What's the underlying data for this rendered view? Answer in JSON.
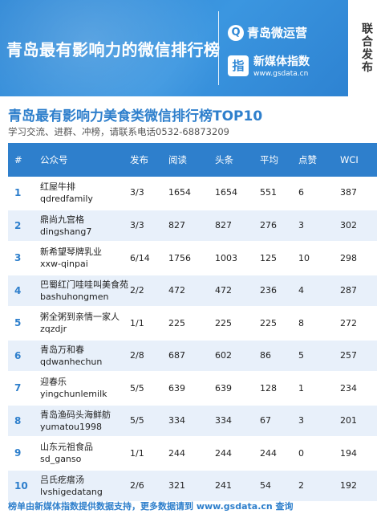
{
  "banner": {
    "title": "青岛最有影响力的微信排行榜",
    "brand1_logo": "Q",
    "brand1": "青岛微运营",
    "brand2_logo": "指",
    "brand2": "新媒体指数",
    "brand2_url": "www.gsdata.cn",
    "joint_release": "联合发布"
  },
  "main": {
    "title": "青岛最有影响力美食类微信排行榜TOP10",
    "subtitle": "学习交流、进群、冲榜，请联系电话0532-68873209"
  },
  "table": {
    "headers": [
      "#",
      "公众号",
      "发布",
      "阅读",
      "头条",
      "平均",
      "点赞",
      "WCI"
    ],
    "rows": [
      {
        "rank": "1",
        "name": "红屋牛排",
        "id": "qdredfamily",
        "posts": "3/3",
        "reads": "1654",
        "headline": "1654",
        "avg": "551",
        "likes": "6",
        "wci": "387"
      },
      {
        "rank": "2",
        "name": "鼎尚九宫格",
        "id": "dingshang7",
        "posts": "3/3",
        "reads": "827",
        "headline": "827",
        "avg": "276",
        "likes": "3",
        "wci": "302"
      },
      {
        "rank": "3",
        "name": "新希望琴牌乳业",
        "id": "xxw-qinpai",
        "posts": "6/14",
        "reads": "1756",
        "headline": "1003",
        "avg": "125",
        "likes": "10",
        "wci": "298"
      },
      {
        "rank": "4",
        "name": "巴蜀红门哇哇叫美食苑",
        "id": "bashuhongmen",
        "posts": "2/2",
        "reads": "472",
        "headline": "472",
        "avg": "236",
        "likes": "4",
        "wci": "287"
      },
      {
        "rank": "5",
        "name": "粥全粥到亲情一家人",
        "id": "zqzdjr",
        "posts": "1/1",
        "reads": "225",
        "headline": "225",
        "avg": "225",
        "likes": "8",
        "wci": "272"
      },
      {
        "rank": "6",
        "name": "青岛万和春",
        "id": "qdwanhechun",
        "posts": "2/8",
        "reads": "687",
        "headline": "602",
        "avg": "86",
        "likes": "5",
        "wci": "257"
      },
      {
        "rank": "7",
        "name": "迎春乐",
        "id": "yingchunlemilk",
        "posts": "5/5",
        "reads": "639",
        "headline": "639",
        "avg": "128",
        "likes": "1",
        "wci": "234"
      },
      {
        "rank": "8",
        "name": "青岛渔码头海鲜舫",
        "id": "yumatou1998",
        "posts": "5/5",
        "reads": "334",
        "headline": "334",
        "avg": "67",
        "likes": "3",
        "wci": "201"
      },
      {
        "rank": "9",
        "name": "山东元祖食品",
        "id": "sd_ganso",
        "posts": "1/1",
        "reads": "244",
        "headline": "244",
        "avg": "244",
        "likes": "0",
        "wci": "194"
      },
      {
        "rank": "10",
        "name": "吕氏疙瘩汤",
        "id": "lvshigedatang",
        "posts": "2/6",
        "reads": "321",
        "headline": "241",
        "avg": "54",
        "likes": "2",
        "wci": "192"
      }
    ]
  },
  "footer": "榜单由新媒体指数提供数据支持，更多数据请到 www.gsdata.cn 查询"
}
